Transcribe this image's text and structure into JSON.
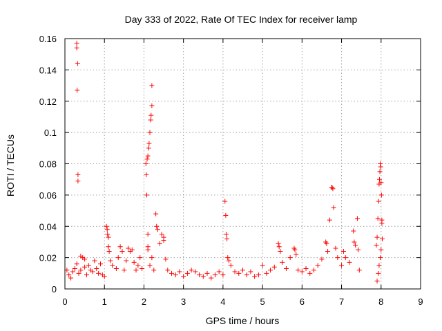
{
  "chart_data": {
    "type": "scatter",
    "title": "Day 333 of 2022, Rate Of TEC Index for receiver lamp",
    "xlabel": "GPS time / hours",
    "ylabel": "ROTI / TECUs",
    "xlim": [
      0,
      9
    ],
    "ylim": [
      0,
      0.16
    ],
    "x_ticks": [
      "0",
      "1",
      "2",
      "3",
      "4",
      "5",
      "6",
      "7",
      "8",
      "9"
    ],
    "y_ticks": [
      "0",
      "0.02",
      "0.04",
      "0.06",
      "0.08",
      "0.1",
      "0.12",
      "0.14",
      "0.16"
    ],
    "grid": true,
    "marker": "plus",
    "color": "#ff0000",
    "series": [
      {
        "points": [
          [
            0.05,
            0.012
          ],
          [
            0.1,
            0.009
          ],
          [
            0.15,
            0.007
          ],
          [
            0.2,
            0.011
          ],
          [
            0.25,
            0.013
          ],
          [
            0.3,
            0.016
          ],
          [
            0.35,
            0.01
          ],
          [
            0.4,
            0.012
          ],
          [
            0.45,
            0.02
          ],
          [
            0.5,
            0.014
          ],
          [
            0.55,
            0.009
          ],
          [
            0.6,
            0.015
          ],
          [
            0.65,
            0.012
          ],
          [
            0.7,
            0.011
          ],
          [
            0.75,
            0.018
          ],
          [
            0.8,
            0.013
          ],
          [
            0.85,
            0.01
          ],
          [
            0.9,
            0.016
          ],
          [
            0.95,
            0.009
          ],
          [
            1.0,
            0.008
          ],
          [
            0.3,
            0.157
          ],
          [
            0.3,
            0.154
          ],
          [
            0.32,
            0.144
          ],
          [
            0.31,
            0.127
          ],
          [
            0.33,
            0.073
          ],
          [
            0.33,
            0.069
          ],
          [
            0.4,
            0.021
          ],
          [
            0.5,
            0.019
          ],
          [
            1.05,
            0.04
          ],
          [
            1.07,
            0.038
          ],
          [
            1.08,
            0.035
          ],
          [
            1.1,
            0.033
          ],
          [
            1.1,
            0.027
          ],
          [
            1.12,
            0.024
          ],
          [
            1.15,
            0.018
          ],
          [
            1.2,
            0.015
          ],
          [
            1.3,
            0.013
          ],
          [
            1.35,
            0.02
          ],
          [
            1.4,
            0.027
          ],
          [
            1.45,
            0.024
          ],
          [
            1.5,
            0.012
          ],
          [
            1.55,
            0.018
          ],
          [
            1.6,
            0.026
          ],
          [
            1.65,
            0.024
          ],
          [
            1.7,
            0.025
          ],
          [
            1.75,
            0.017
          ],
          [
            1.8,
            0.012
          ],
          [
            1.85,
            0.015
          ],
          [
            1.9,
            0.02
          ],
          [
            1.95,
            0.013
          ],
          [
            2.05,
            0.08
          ],
          [
            2.06,
            0.073
          ],
          [
            2.07,
            0.06
          ],
          [
            2.08,
            0.083
          ],
          [
            2.1,
            0.085
          ],
          [
            2.12,
            0.09
          ],
          [
            2.13,
            0.093
          ],
          [
            2.15,
            0.1
          ],
          [
            2.17,
            0.108
          ],
          [
            2.18,
            0.111
          ],
          [
            2.2,
            0.117
          ],
          [
            2.2,
            0.13
          ],
          [
            2.1,
            0.035
          ],
          [
            2.1,
            0.027
          ],
          [
            2.1,
            0.025
          ],
          [
            2.15,
            0.015
          ],
          [
            2.2,
            0.02
          ],
          [
            2.25,
            0.012
          ],
          [
            2.3,
            0.048
          ],
          [
            2.32,
            0.04
          ],
          [
            2.35,
            0.038
          ],
          [
            2.4,
            0.029
          ],
          [
            2.45,
            0.035
          ],
          [
            2.5,
            0.033
          ],
          [
            2.5,
            0.031
          ],
          [
            2.55,
            0.019
          ],
          [
            2.6,
            0.012
          ],
          [
            2.7,
            0.01
          ],
          [
            2.8,
            0.009
          ],
          [
            2.9,
            0.011
          ],
          [
            3.0,
            0.008
          ],
          [
            3.1,
            0.01
          ],
          [
            3.2,
            0.012
          ],
          [
            3.3,
            0.011
          ],
          [
            3.4,
            0.009
          ],
          [
            3.5,
            0.008
          ],
          [
            3.6,
            0.01
          ],
          [
            3.7,
            0.007
          ],
          [
            3.8,
            0.009
          ],
          [
            3.9,
            0.011
          ],
          [
            4.0,
            0.009
          ],
          [
            4.05,
            0.056
          ],
          [
            4.07,
            0.047
          ],
          [
            4.08,
            0.035
          ],
          [
            4.1,
            0.032
          ],
          [
            4.12,
            0.02
          ],
          [
            4.15,
            0.018
          ],
          [
            4.2,
            0.015
          ],
          [
            4.3,
            0.011
          ],
          [
            4.4,
            0.01
          ],
          [
            4.5,
            0.012
          ],
          [
            4.6,
            0.009
          ],
          [
            4.7,
            0.011
          ],
          [
            4.8,
            0.008
          ],
          [
            4.9,
            0.009
          ],
          [
            5.0,
            0.015
          ],
          [
            5.1,
            0.01
          ],
          [
            5.2,
            0.012
          ],
          [
            5.3,
            0.014
          ],
          [
            5.4,
            0.029
          ],
          [
            5.42,
            0.027
          ],
          [
            5.45,
            0.024
          ],
          [
            5.5,
            0.017
          ],
          [
            5.6,
            0.013
          ],
          [
            5.7,
            0.02
          ],
          [
            5.8,
            0.026
          ],
          [
            5.82,
            0.025
          ],
          [
            5.85,
            0.022
          ],
          [
            5.9,
            0.012
          ],
          [
            6.0,
            0.011
          ],
          [
            6.1,
            0.013
          ],
          [
            6.2,
            0.01
          ],
          [
            6.3,
            0.012
          ],
          [
            6.4,
            0.015
          ],
          [
            6.5,
            0.019
          ],
          [
            6.6,
            0.03
          ],
          [
            6.62,
            0.029
          ],
          [
            6.65,
            0.024
          ],
          [
            6.7,
            0.044
          ],
          [
            6.75,
            0.065
          ],
          [
            6.76,
            0.065
          ],
          [
            6.78,
            0.064
          ],
          [
            6.8,
            0.052
          ],
          [
            6.85,
            0.026
          ],
          [
            6.9,
            0.02
          ],
          [
            7.0,
            0.015
          ],
          [
            7.05,
            0.024
          ],
          [
            7.1,
            0.02
          ],
          [
            7.2,
            0.017
          ],
          [
            7.3,
            0.037
          ],
          [
            7.32,
            0.03
          ],
          [
            7.35,
            0.028
          ],
          [
            7.4,
            0.045
          ],
          [
            7.42,
            0.025
          ],
          [
            7.45,
            0.012
          ],
          [
            7.88,
            0.028
          ],
          [
            7.9,
            0.033
          ],
          [
            7.92,
            0.045
          ],
          [
            7.94,
            0.056
          ],
          [
            7.95,
            0.067
          ],
          [
            7.96,
            0.07
          ],
          [
            7.97,
            0.075
          ],
          [
            7.98,
            0.08
          ],
          [
            7.99,
            0.078
          ],
          [
            8.0,
            0.068
          ],
          [
            8.01,
            0.06
          ],
          [
            8.02,
            0.044
          ],
          [
            8.02,
            0.042
          ],
          [
            8.03,
            0.032
          ],
          [
            8.0,
            0.025
          ],
          [
            7.98,
            0.02
          ],
          [
            7.95,
            0.015
          ],
          [
            7.93,
            0.01
          ],
          [
            7.9,
            0.005
          ]
        ]
      }
    ]
  }
}
